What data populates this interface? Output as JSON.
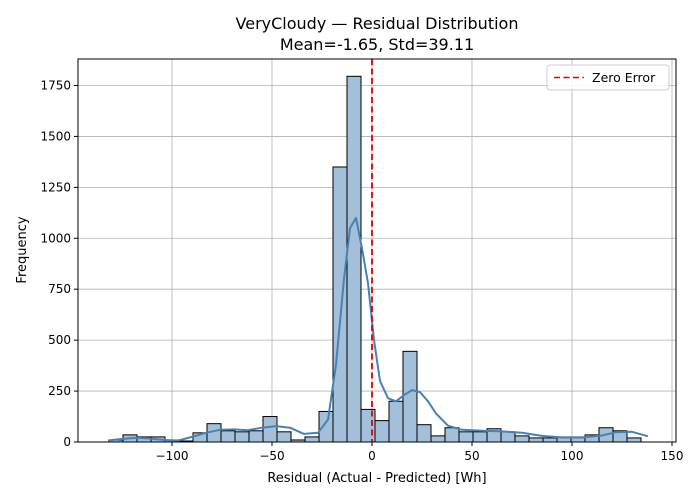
{
  "chart_data": {
    "type": "histogram",
    "title": "VeryCloudy — Residual Distribution",
    "subtitle": "Mean=-1.65, Std=39.11",
    "xlabel": "Residual (Actual - Predicted) [Wh]",
    "ylabel": "Frequency",
    "xlim": [
      -147,
      152
    ],
    "ylim": [
      0,
      1880
    ],
    "x_ticks": [
      -100,
      -50,
      0,
      50,
      100,
      150
    ],
    "x_tick_labels": [
      "−100",
      "−50",
      "0",
      "50",
      "100",
      "150"
    ],
    "y_ticks": [
      0,
      250,
      500,
      750,
      1000,
      1250,
      1500,
      1750
    ],
    "y_tick_labels": [
      "0",
      "250",
      "500",
      "750",
      "1000",
      "1250",
      "1500",
      "1750"
    ],
    "grid": true,
    "legend": {
      "position": "top-right",
      "entries": [
        {
          "label": "Zero Error",
          "style": "red-dashed-line"
        }
      ]
    },
    "bins": {
      "start": -131.5,
      "width": 7,
      "counts": [
        10,
        35,
        25,
        25,
        10,
        5,
        45,
        90,
        55,
        50,
        55,
        125,
        50,
        10,
        25,
        150,
        1350,
        1795,
        160,
        105,
        200,
        445,
        85,
        30,
        70,
        50,
        50,
        65,
        50,
        30,
        20,
        20,
        25,
        25,
        35,
        70,
        55,
        20
      ]
    },
    "kde": {
      "x": [
        -131.5,
        -125,
        -118,
        -111,
        -104,
        -97,
        -90,
        -83,
        -76,
        -69,
        -62,
        -55,
        -48,
        -41,
        -34,
        -27,
        -22,
        -18,
        -14,
        -11,
        -8,
        -5,
        -2,
        1,
        4,
        8,
        12,
        16,
        20,
        24,
        28,
        32,
        38,
        45,
        55,
        65,
        75,
        85,
        95,
        105,
        115,
        122,
        130,
        138
      ],
      "y": [
        8,
        15,
        20,
        17,
        10,
        7,
        25,
        45,
        60,
        62,
        58,
        70,
        78,
        70,
        40,
        45,
        110,
        380,
        800,
        1050,
        1100,
        950,
        780,
        500,
        300,
        215,
        200,
        230,
        255,
        245,
        200,
        140,
        80,
        60,
        55,
        52,
        45,
        30,
        22,
        22,
        32,
        48,
        50,
        28
      ]
    },
    "zero_line_x": 0,
    "colors": {
      "bar_fill": "#a3bfd9",
      "bar_edge": "#000000",
      "kde": "#4682b4",
      "zero_line": "#e00000",
      "grid": "#b0b0b0"
    }
  }
}
